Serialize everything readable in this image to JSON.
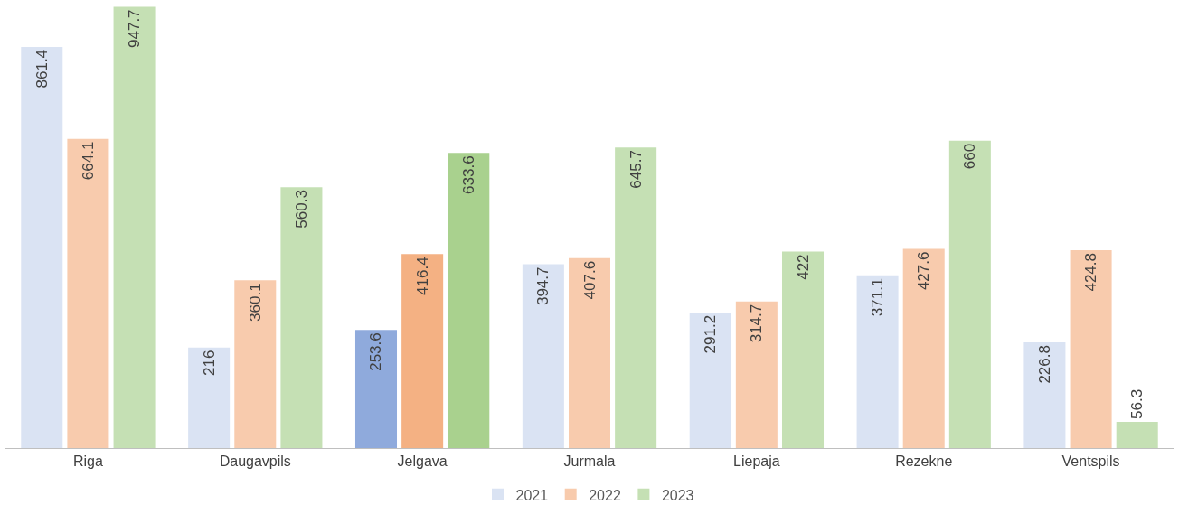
{
  "chart_data": {
    "type": "bar",
    "categories": [
      "Riga",
      "Daugavpils",
      "Jelgava",
      "Jurmala",
      "Liepaja",
      "Rezekne",
      "Ventspils"
    ],
    "series": [
      {
        "name": "2021",
        "color": "#dae3f3",
        "colors": [
          "#dae3f3",
          "#dae3f3",
          "#8faadc",
          "#dae3f3",
          "#dae3f3",
          "#dae3f3",
          "#dae3f3"
        ],
        "values": [
          861.4,
          216,
          253.6,
          394.7,
          291.2,
          371.1,
          226.8
        ]
      },
      {
        "name": "2022",
        "color": "#f8cbad",
        "colors": [
          "#f8cbad",
          "#f8cbad",
          "#f4b183",
          "#f8cbad",
          "#f8cbad",
          "#f8cbad",
          "#f8cbad"
        ],
        "values": [
          664.1,
          360.1,
          416.4,
          407.6,
          314.7,
          427.6,
          424.8
        ]
      },
      {
        "name": "2023",
        "color": "#c5e0b4",
        "colors": [
          "#c5e0b4",
          "#c5e0b4",
          "#a9d18e",
          "#c5e0b4",
          "#c5e0b4",
          "#c5e0b4",
          "#c5e0b4"
        ],
        "values": [
          947.7,
          560.3,
          633.6,
          645.7,
          422,
          660,
          56.3
        ]
      }
    ],
    "data_labels": true,
    "legend": "bottom"
  }
}
